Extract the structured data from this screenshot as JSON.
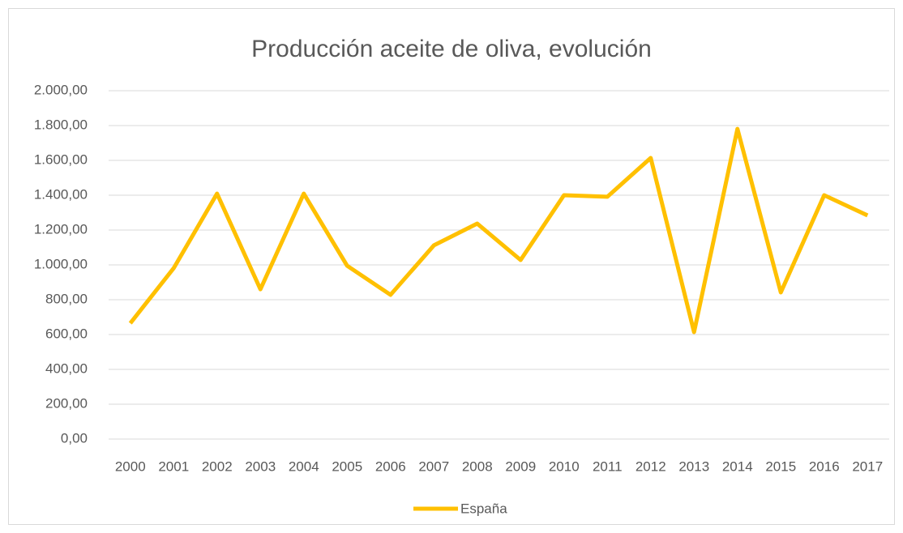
{
  "chart_data": {
    "type": "line",
    "title": "Producción aceite de oliva, evolución",
    "categories": [
      "2000",
      "2001",
      "2002",
      "2003",
      "2004",
      "2005",
      "2006",
      "2007",
      "2008",
      "2009",
      "2010",
      "2011",
      "2012",
      "2013",
      "2014",
      "2015",
      "2016",
      "2017"
    ],
    "series": [
      {
        "name": "España",
        "color": "#ffc000",
        "values": [
          665,
          981,
          1409,
          860,
          1409,
          995,
          828,
          1112,
          1237,
          1028,
          1400,
          1391,
          1614,
          614,
          1781,
          842,
          1400,
          1284
        ]
      }
    ],
    "ylim": [
      0,
      2000
    ],
    "yticks": [
      {
        "value": 0,
        "label": "0,00"
      },
      {
        "value": 200,
        "label": "200,00"
      },
      {
        "value": 400,
        "label": "400,00"
      },
      {
        "value": 600,
        "label": "600,00"
      },
      {
        "value": 800,
        "label": "800,00"
      },
      {
        "value": 1000,
        "label": "1.000,00"
      },
      {
        "value": 1200,
        "label": "1.200,00"
      },
      {
        "value": 1400,
        "label": "1.400,00"
      },
      {
        "value": 1600,
        "label": "1.600,00"
      },
      {
        "value": 1800,
        "label": "1.800,00"
      },
      {
        "value": 2000,
        "label": "2.000,00"
      }
    ],
    "grid": true,
    "legend": "bottom"
  }
}
